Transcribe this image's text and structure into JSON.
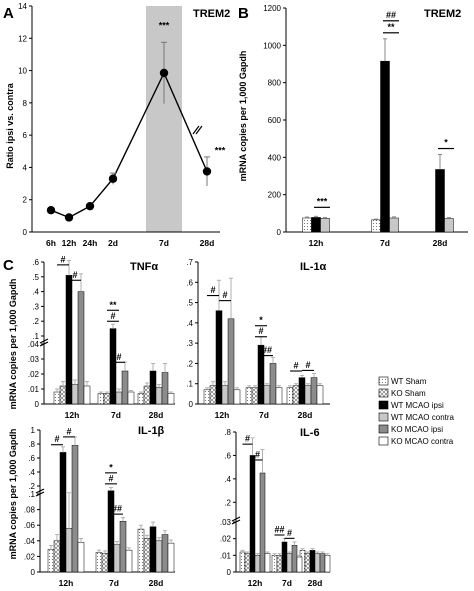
{
  "colors": {
    "wt_sham": "#eeeeee",
    "ko_sham": "#cccccc",
    "wt_mcao_ipsi": "#000000",
    "wt_mcao_contra": "#c8c8c8",
    "ko_mcao_ipsi": "#8c8c8c",
    "ko_mcao_contra": "#ffffff",
    "highlight": "#c8c8c8"
  },
  "legend": {
    "items": [
      "WT Sham",
      "KO Sham",
      "WT MCAO ipsi",
      "WT MCAO contra",
      "KO MCAO ipsi",
      "KO MCAO contra"
    ]
  },
  "chart_data": [
    {
      "id": "A",
      "letter": "A",
      "type": "line",
      "title": "TREM2",
      "ylabel": "Ratio ipsi vs. contra",
      "xlabel": "",
      "categories": [
        "6h",
        "12h",
        "24h",
        "2d",
        "7d",
        "28d"
      ],
      "values": [
        1.35,
        0.9,
        1.6,
        3.3,
        9.85,
        3.75
      ],
      "errors": [
        0.12,
        0.1,
        0.15,
        0.35,
        1.9,
        0.9
      ],
      "ylim": [
        0,
        14
      ],
      "yticks": [
        0,
        2,
        4,
        6,
        8,
        10,
        12,
        14
      ],
      "highlighted_category": "7d",
      "axis_break_before": "28d",
      "significance": [
        {
          "category": "7d",
          "label": "***"
        },
        {
          "category": "28d",
          "label": "***"
        }
      ]
    },
    {
      "id": "B",
      "letter": "B",
      "type": "bar",
      "title": "TREM2",
      "ylabel": "mRNA copies per 1,000 Gapdh",
      "categories": [
        "12h",
        "7d",
        "28d"
      ],
      "series_names": [
        "WT Sham",
        "WT MCAO ipsi",
        "WT MCAO contra"
      ],
      "series_values": [
        [
          75,
          65,
          0
        ],
        [
          78,
          915,
          335
        ],
        [
          73,
          75,
          72
        ]
      ],
      "series_errors": [
        [
          5,
          4,
          0
        ],
        [
          6,
          120,
          80
        ],
        [
          5,
          6,
          5
        ]
      ],
      "ylim": [
        0,
        1200
      ],
      "yticks": [
        0,
        200,
        400,
        600,
        800,
        1000,
        1200
      ],
      "significance": [
        {
          "category": "12h",
          "labels": [
            "***"
          ]
        },
        {
          "category": "7d",
          "labels": [
            "**",
            "##"
          ]
        },
        {
          "category": "28d",
          "labels": [
            "*"
          ]
        }
      ]
    },
    {
      "id": "C1",
      "letter": "C",
      "type": "bar",
      "title": "TNFα",
      "ylabel": "mRNA copies per 1,000 Gapdh",
      "categories": [
        "12h",
        "7d",
        "28d"
      ],
      "broken_axis": {
        "lower": [
          0,
          0.04
        ],
        "upper": [
          0.1,
          0.6
        ]
      },
      "lower_ticks": [
        0,
        0.01,
        0.02,
        0.03,
        0.04
      ],
      "upper_ticks": [
        0.1,
        0.2,
        0.3,
        0.4,
        0.5,
        0.6
      ],
      "series_values": [
        [
          0.008,
          0.007,
          0.007
        ],
        [
          0.012,
          0.007,
          0.012
        ],
        [
          0.51,
          0.15,
          0.022
        ],
        [
          0.013,
          0.008,
          0.011
        ],
        [
          0.4,
          0.022,
          0.021
        ],
        [
          0.012,
          0.008,
          0.007
        ]
      ],
      "series_errors": [
        [
          0.002,
          0.001,
          0.001
        ],
        [
          0.003,
          0.001,
          0.002
        ],
        [
          0.1,
          0.03,
          0.005
        ],
        [
          0.003,
          0.002,
          0.002
        ],
        [
          0.12,
          0.006,
          0.006
        ],
        [
          0.003,
          0.001,
          0.001
        ]
      ],
      "significance": [
        {
          "category": "12h",
          "labels": [
            "#",
            "#"
          ]
        },
        {
          "category": "7d",
          "labels": [
            "**",
            "#",
            "#"
          ]
        }
      ]
    },
    {
      "id": "C2",
      "letter": "",
      "type": "bar",
      "title": "IL-1α",
      "ylabel": "",
      "categories": [
        "12h",
        "7d",
        "28d"
      ],
      "broken_axis": null,
      "ylim": [
        0,
        0.7
      ],
      "yticks": [
        0,
        0.1,
        0.2,
        0.3,
        0.4,
        0.5,
        0.6,
        0.7
      ],
      "series_values": [
        [
          0.07,
          0.08,
          0.08
        ],
        [
          0.09,
          0.08,
          0.09
        ],
        [
          0.46,
          0.29,
          0.13
        ],
        [
          0.09,
          0.09,
          0.09
        ],
        [
          0.42,
          0.2,
          0.13
        ],
        [
          0.07,
          0.08,
          0.09
        ]
      ],
      "series_errors": [
        [
          0.01,
          0.01,
          0.01
        ],
        [
          0.02,
          0.01,
          0.01
        ],
        [
          0.15,
          0.04,
          0.01
        ],
        [
          0.02,
          0.01,
          0.01
        ],
        [
          0.2,
          0.03,
          0.02
        ],
        [
          0.01,
          0.01,
          0.01
        ]
      ],
      "significance": [
        {
          "category": "12h",
          "labels": [
            "#",
            "#"
          ]
        },
        {
          "category": "7d",
          "labels": [
            "*",
            "#",
            "##"
          ]
        },
        {
          "category": "28d",
          "labels": [
            "#",
            "#"
          ]
        }
      ]
    },
    {
      "id": "C3",
      "letter": "",
      "type": "bar",
      "title": "IL-1β",
      "ylabel": "mRNA copies per 1,000 Gapdh",
      "categories": [
        "12h",
        "7d",
        "28d"
      ],
      "broken_axis": {
        "lower": [
          0,
          0.1
        ],
        "upper": [
          0.2,
          1.0
        ]
      },
      "lower_ticks": [
        0,
        0.02,
        0.04,
        0.06,
        0.08,
        0.1
      ],
      "upper_ticks": [
        0.2,
        0.4,
        0.6,
        0.8,
        1.0
      ],
      "series_values": [
        [
          0.029,
          0.025,
          0.055
        ],
        [
          0.04,
          0.024,
          0.043
        ],
        [
          0.68,
          0.14,
          0.058
        ],
        [
          0.056,
          0.035,
          0.04
        ],
        [
          0.78,
          0.065,
          0.048
        ],
        [
          0.038,
          0.028,
          0.037
        ]
      ],
      "series_errors": [
        [
          0.005,
          0.003,
          0.005
        ],
        [
          0.008,
          0.003,
          0.004
        ],
        [
          0.08,
          0.04,
          0.006
        ],
        [
          0.06,
          0.004,
          0.004
        ],
        [
          0.12,
          0.005,
          0.005
        ],
        [
          0.005,
          0.003,
          0.004
        ]
      ],
      "significance": [
        {
          "category": "12h",
          "labels": [
            "#",
            "#"
          ]
        },
        {
          "category": "7d",
          "labels": [
            "*",
            "#",
            "##"
          ]
        },
        {
          "category": "28d",
          "labels": []
        }
      ]
    },
    {
      "id": "C4",
      "letter": "",
      "type": "bar",
      "title": "IL-6",
      "ylabel": "",
      "categories": [
        "12h",
        "7d",
        "28d"
      ],
      "broken_axis": {
        "lower": [
          0,
          0.03
        ],
        "upper": [
          0.1,
          0.8
        ]
      },
      "lower_ticks": [
        0,
        0.01,
        0.02,
        0.03
      ],
      "upper_ticks": [
        0.2,
        0.4,
        0.6,
        0.8
      ],
      "series_values": [
        [
          0.012,
          0.01,
          0.013
        ],
        [
          0.011,
          0.01,
          0.011
        ],
        [
          0.6,
          0.018,
          0.013
        ],
        [
          0.01,
          0.011,
          0.011
        ],
        [
          0.45,
          0.016,
          0.011
        ],
        [
          0.011,
          0.009,
          0.01
        ]
      ],
      "series_errors": [
        [
          0.001,
          0.001,
          0.001
        ],
        [
          0.001,
          0.001,
          0.001
        ],
        [
          0.15,
          0.002,
          0.001
        ],
        [
          0.001,
          0.001,
          0.001
        ],
        [
          0.2,
          0.002,
          0.001
        ],
        [
          0.001,
          0.001,
          0.001
        ]
      ],
      "significance": [
        {
          "category": "12h",
          "labels": [
            "#",
            "#"
          ]
        },
        {
          "category": "7d",
          "labels": [
            "##",
            "#"
          ]
        }
      ]
    }
  ]
}
